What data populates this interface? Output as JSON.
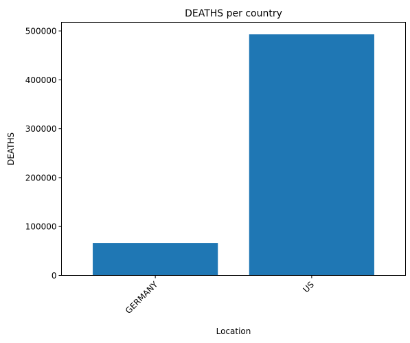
{
  "chart_data": {
    "type": "bar",
    "title": "DEATHS per country",
    "xlabel": "Location",
    "ylabel": "DEATHS",
    "categories": [
      "GERMANY",
      "US"
    ],
    "values": [
      66500,
      493000
    ],
    "ylim": [
      0,
      517650
    ],
    "yticks": [
      0,
      100000,
      200000,
      300000,
      400000,
      500000
    ],
    "bar_color": "#1f77b4",
    "grid": false,
    "legend": "none"
  }
}
